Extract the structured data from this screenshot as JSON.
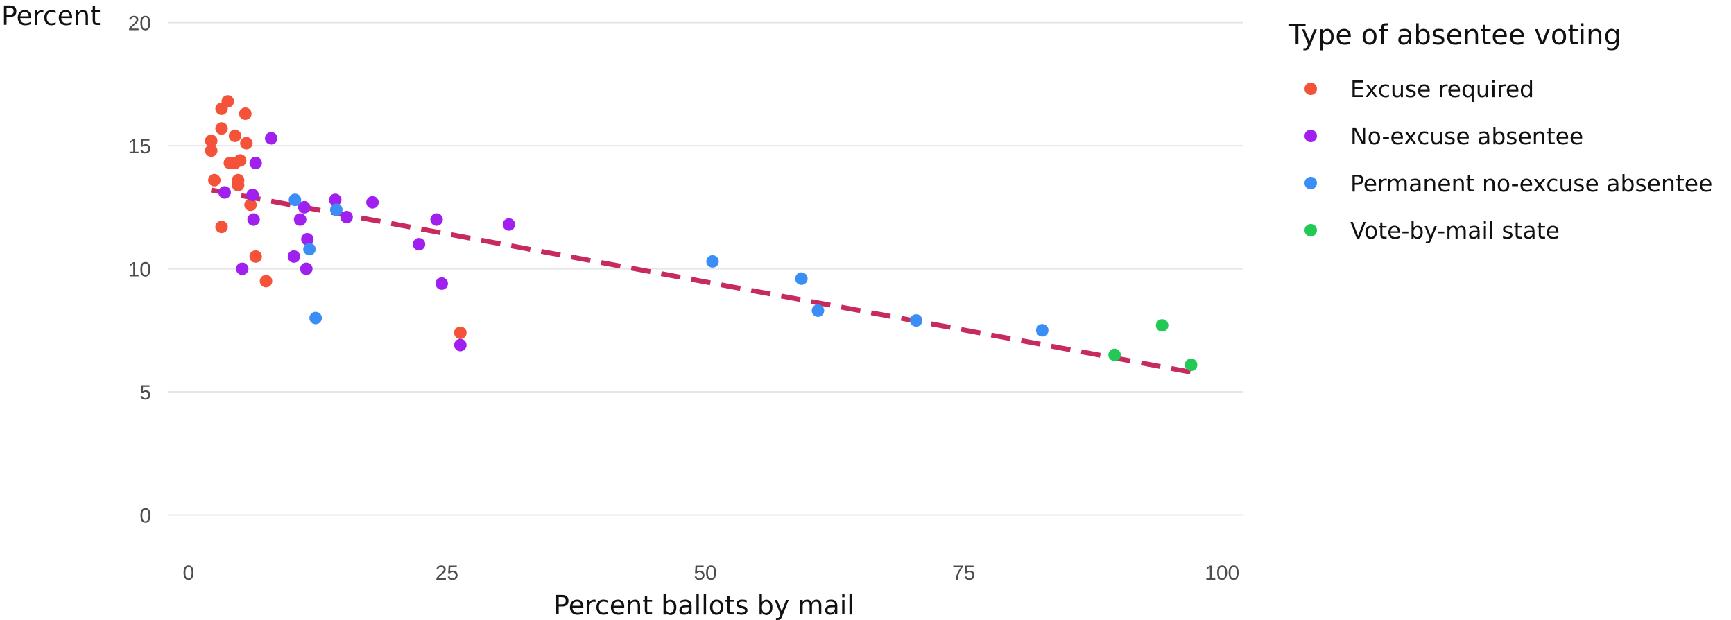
{
  "chart_data": {
    "type": "scatter",
    "title": "",
    "xlabel": "Percent ballots by mail",
    "ylabel": "Percent",
    "xlim": [
      -2,
      102
    ],
    "ylim": [
      -1,
      20.3
    ],
    "x_ticks": [
      0,
      25,
      50,
      75,
      100
    ],
    "x_tick_labels": [
      "0",
      "25",
      "50",
      "75",
      "100"
    ],
    "y_ticks": [
      0,
      5,
      10,
      15,
      20
    ],
    "y_tick_labels": [
      "0",
      "5",
      "10",
      "15",
      "20"
    ],
    "grid": "horizontal major lines only",
    "legend": {
      "title": "Type of absentee voting",
      "position": "right"
    },
    "series": [
      {
        "name": "Excuse required",
        "color": "#F4533A",
        "points": [
          {
            "x": 2.2,
            "y": 15.2
          },
          {
            "x": 2.2,
            "y": 14.8
          },
          {
            "x": 2.5,
            "y": 13.6
          },
          {
            "x": 3.2,
            "y": 16.5
          },
          {
            "x": 3.2,
            "y": 15.7
          },
          {
            "x": 3.2,
            "y": 11.7
          },
          {
            "x": 3.8,
            "y": 16.8
          },
          {
            "x": 4.0,
            "y": 14.3
          },
          {
            "x": 4.5,
            "y": 15.4
          },
          {
            "x": 4.5,
            "y": 14.3
          },
          {
            "x": 4.8,
            "y": 13.6
          },
          {
            "x": 4.8,
            "y": 13.4
          },
          {
            "x": 5.0,
            "y": 14.4
          },
          {
            "x": 5.5,
            "y": 16.3
          },
          {
            "x": 5.6,
            "y": 15.1
          },
          {
            "x": 6.0,
            "y": 12.6
          },
          {
            "x": 6.5,
            "y": 10.5
          },
          {
            "x": 7.5,
            "y": 9.5
          },
          {
            "x": 26.3,
            "y": 7.4
          }
        ]
      },
      {
        "name": "No-excuse absentee",
        "color": "#A020F0",
        "points": [
          {
            "x": 3.5,
            "y": 13.1
          },
          {
            "x": 5.2,
            "y": 10.0
          },
          {
            "x": 6.2,
            "y": 13.0
          },
          {
            "x": 6.3,
            "y": 12.0
          },
          {
            "x": 6.5,
            "y": 14.3
          },
          {
            "x": 8.0,
            "y": 15.3
          },
          {
            "x": 10.2,
            "y": 10.5
          },
          {
            "x": 10.8,
            "y": 12.0
          },
          {
            "x": 11.2,
            "y": 12.5
          },
          {
            "x": 11.4,
            "y": 10.0
          },
          {
            "x": 11.5,
            "y": 11.2
          },
          {
            "x": 14.2,
            "y": 12.8
          },
          {
            "x": 15.3,
            "y": 12.1
          },
          {
            "x": 17.8,
            "y": 12.7
          },
          {
            "x": 22.3,
            "y": 11.0
          },
          {
            "x": 24.0,
            "y": 12.0
          },
          {
            "x": 24.5,
            "y": 9.4
          },
          {
            "x": 26.3,
            "y": 6.9
          },
          {
            "x": 31.0,
            "y": 11.8
          }
        ]
      },
      {
        "name": "Permanent no-excuse absentee",
        "color": "#3A8EF5",
        "points": [
          {
            "x": 10.3,
            "y": 12.8
          },
          {
            "x": 11.7,
            "y": 10.8
          },
          {
            "x": 12.3,
            "y": 8.0
          },
          {
            "x": 14.3,
            "y": 12.4
          },
          {
            "x": 50.7,
            "y": 10.3
          },
          {
            "x": 59.3,
            "y": 9.6
          },
          {
            "x": 60.9,
            "y": 8.3
          },
          {
            "x": 70.4,
            "y": 7.9
          },
          {
            "x": 82.6,
            "y": 7.5
          }
        ]
      },
      {
        "name": "Vote-by-mail state",
        "color": "#22C955",
        "points": [
          {
            "x": 89.6,
            "y": 6.5
          },
          {
            "x": 94.2,
            "y": 7.7
          },
          {
            "x": 97.0,
            "y": 6.1
          }
        ]
      }
    ],
    "trend_line": {
      "style": "dashed",
      "color": "#C62A5E",
      "x": [
        2.2,
        97.0
      ],
      "y": [
        13.2,
        5.8
      ]
    }
  }
}
